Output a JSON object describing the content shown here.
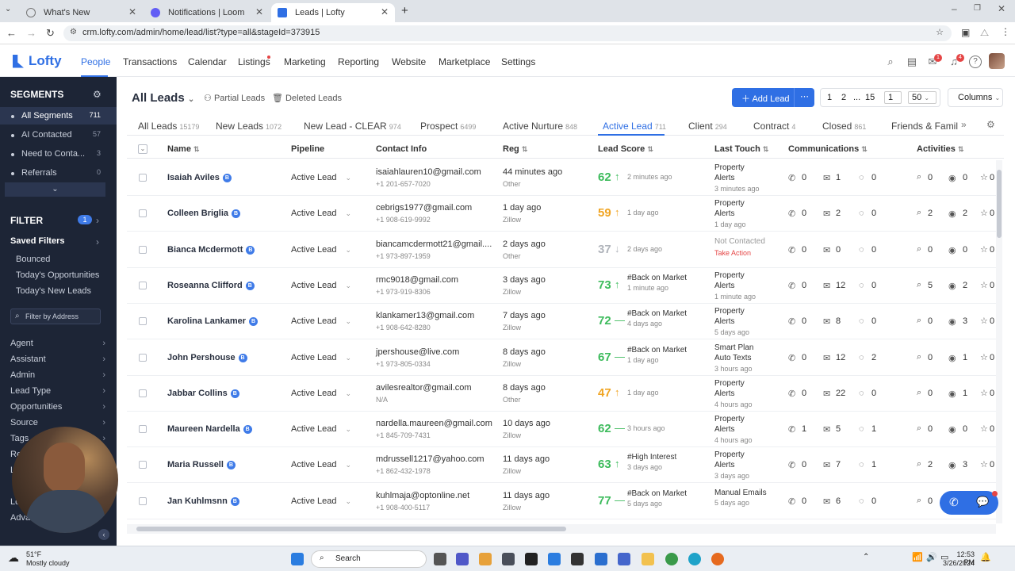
{
  "browser": {
    "tabs": [
      {
        "title": "What's New"
      },
      {
        "title": "Notifications | Loom"
      },
      {
        "title": "Leads | Lofty"
      }
    ],
    "url": "crm.lofty.com/admin/home/lead/list?type=all&stageId=373915"
  },
  "app": {
    "logo": "Lofty",
    "nav": [
      "People",
      "Transactions",
      "Calendar",
      "Listings",
      "Marketing",
      "Reporting",
      "Website",
      "Marketplace",
      "Settings"
    ],
    "badges": {
      "inbox": "1",
      "bell": "4"
    }
  },
  "sidebar": {
    "segments_title": "SEGMENTS",
    "segments": [
      {
        "label": "All Segments",
        "count": "711"
      },
      {
        "label": "AI Contacted",
        "count": "57"
      },
      {
        "label": "Need to Conta...",
        "count": "3"
      },
      {
        "label": "Referrals",
        "count": "0"
      }
    ],
    "filter_title": "FILTER",
    "filter_count": "1",
    "saved_filters": "Saved Filters",
    "saved": [
      "Bounced",
      "Today's Opportunities",
      "Today's New Leads"
    ],
    "filter_address": "Filter by Address",
    "filters": [
      "Agent",
      "Assistant",
      "Admin",
      "Lead Type",
      "Opportunities",
      "Source",
      "Tags",
      "Re",
      "L",
      "Lo",
      "Adva"
    ]
  },
  "toolbar": {
    "title": "All Leads",
    "partial": "Partial Leads",
    "deleted": "Deleted Leads",
    "add_lead": "Add Lead",
    "pages": [
      "1",
      "2",
      "...",
      "15"
    ],
    "page_input": "1",
    "per_page": "50",
    "columns": "Columns"
  },
  "stages": [
    {
      "label": "All Leads",
      "count": "15179"
    },
    {
      "label": "New Leads",
      "count": "1072"
    },
    {
      "label": "New Lead - CLEAR",
      "count": "974"
    },
    {
      "label": "Prospect",
      "count": "6499"
    },
    {
      "label": "Active Nurture",
      "count": "848"
    },
    {
      "label": "Active Lead",
      "count": "711"
    },
    {
      "label": "Client",
      "count": "294"
    },
    {
      "label": "Contract",
      "count": "4"
    },
    {
      "label": "Closed",
      "count": "861"
    },
    {
      "label": "Friends & Famil",
      "count": ""
    }
  ],
  "columns": [
    "Name",
    "Pipeline",
    "Contact Info",
    "Reg",
    "Lead Score",
    "Last Touch",
    "Communications",
    "Activities"
  ],
  "rows": [
    {
      "name": "Isaiah Aviles",
      "pipeline": "Active Lead",
      "email": "isaiahlauren10@gmail.com",
      "phone": "+1 201-657-7020",
      "reg": "44 minutes ago",
      "source": "Other",
      "score": "62",
      "score_color": "#3dbb5c",
      "trend": "↑",
      "score_note": "2 minutes ago",
      "score_tag": "",
      "touch1": "Property",
      "touch2": "Alerts",
      "touch3": "3 minutes ago",
      "calls": "0",
      "emails": "1",
      "texts": "0",
      "views": "0",
      "visits": "0"
    },
    {
      "name": "Colleen Briglia",
      "pipeline": "Active Lead",
      "email": "cebrigs1977@gmail.com",
      "phone": "+1 908-619-9992",
      "reg": "1 day ago",
      "source": "Zillow",
      "score": "59",
      "score_color": "#f0a422",
      "trend": "↑",
      "score_note": "1 day ago",
      "score_tag": "",
      "touch1": "Property",
      "touch2": "Alerts",
      "touch3": "1 day ago",
      "calls": "0",
      "emails": "2",
      "texts": "0",
      "views": "2",
      "visits": "2"
    },
    {
      "name": "Bianca Mcdermott",
      "pipeline": "Active Lead",
      "email": "biancamcdermott21@gmail....",
      "phone": "+1 973-897-1959",
      "reg": "2 days ago",
      "source": "Other",
      "score": "37",
      "score_color": "#b0b4bb",
      "trend": "↓",
      "score_note": "2 days ago",
      "score_tag": "",
      "touch1": "Not Contacted",
      "touch2": "",
      "touch3": "Take Action",
      "calls": "0",
      "emails": "0",
      "texts": "0",
      "views": "0",
      "visits": "0"
    },
    {
      "name": "Roseanna Clifford",
      "pipeline": "Active Lead",
      "email": "rmc9018@gmail.com",
      "phone": "+1 973-919-8306",
      "reg": "3 days ago",
      "source": "Zillow",
      "score": "73",
      "score_color": "#3dbb5c",
      "trend": "↑",
      "score_note": "1 minute ago",
      "score_tag": "#Back on Market",
      "touch1": "Property",
      "touch2": "Alerts",
      "touch3": "1 minute ago",
      "calls": "0",
      "emails": "12",
      "texts": "0",
      "views": "5",
      "visits": "2"
    },
    {
      "name": "Karolina Lankamer",
      "pipeline": "Active Lead",
      "email": "klankamer13@gmail.com",
      "phone": "+1 908-642-8280",
      "reg": "7 days ago",
      "source": "Zillow",
      "score": "72",
      "score_color": "#3dbb5c",
      "trend": "—",
      "score_note": "4 days ago",
      "score_tag": "#Back on Market",
      "touch1": "Property",
      "touch2": "Alerts",
      "touch3": "5 days ago",
      "calls": "0",
      "emails": "8",
      "texts": "0",
      "views": "0",
      "visits": "3"
    },
    {
      "name": "John Pershouse",
      "pipeline": "Active Lead",
      "email": "jpershouse@live.com",
      "phone": "+1 973-805-0334",
      "reg": "8 days ago",
      "source": "Zillow",
      "score": "67",
      "score_color": "#3dbb5c",
      "trend": "—",
      "score_note": "1 day ago",
      "score_tag": "#Back on Market",
      "touch1": "Smart Plan",
      "touch2": "Auto Texts",
      "touch3": "3 hours ago",
      "calls": "0",
      "emails": "12",
      "texts": "2",
      "views": "0",
      "visits": "1"
    },
    {
      "name": "Jabbar Collins",
      "pipeline": "Active Lead",
      "email": "avilesrealtor@gmail.com",
      "phone": "N/A",
      "reg": "8 days ago",
      "source": "Other",
      "score": "47",
      "score_color": "#f0a422",
      "trend": "↑",
      "score_note": "1 day ago",
      "score_tag": "",
      "touch1": "Property",
      "touch2": "Alerts",
      "touch3": "4 hours ago",
      "calls": "0",
      "emails": "22",
      "texts": "0",
      "views": "0",
      "visits": "1"
    },
    {
      "name": "Maureen Nardella",
      "pipeline": "Active Lead",
      "email": "nardella.maureen@gmail.com",
      "phone": "+1 845-709-7431",
      "reg": "10 days ago",
      "source": "Zillow",
      "score": "62",
      "score_color": "#3dbb5c",
      "trend": "—",
      "score_note": "3 hours ago",
      "score_tag": "",
      "touch1": "Property",
      "touch2": "Alerts",
      "touch3": "4 hours ago",
      "calls": "1",
      "emails": "5",
      "texts": "1",
      "views": "0",
      "visits": "0"
    },
    {
      "name": "Maria Russell",
      "pipeline": "Active Lead",
      "email": "mdrussell1217@yahoo.com",
      "phone": "+1 862-432-1978",
      "reg": "11 days ago",
      "source": "Zillow",
      "score": "63",
      "score_color": "#3dbb5c",
      "trend": "↑",
      "score_note": "3 days ago",
      "score_tag": "#High Interest",
      "touch1": "Property",
      "touch2": "Alerts",
      "touch3": "3 days ago",
      "calls": "0",
      "emails": "7",
      "texts": "1",
      "views": "2",
      "visits": "3"
    },
    {
      "name": "Jan Kuhlmsnn",
      "pipeline": "Active Lead",
      "email": "kuhlmaja@optonline.net",
      "phone": "+1 908-400-5117",
      "reg": "11 days ago",
      "source": "Zillow",
      "score": "77",
      "score_color": "#3dbb5c",
      "trend": "—",
      "score_note": "5 days ago",
      "score_tag": "#Back on Market",
      "touch1": "Manual Emails",
      "touch2": "",
      "touch3": "5 days ago",
      "calls": "0",
      "emails": "6",
      "texts": "0",
      "views": "0",
      "visits": ""
    }
  ],
  "taskbar": {
    "weather_temp": "51°F",
    "weather_desc": "Mostly cloudy",
    "search": "Search",
    "time": "12:53 PM",
    "date": "3/26/2024"
  },
  "colors": {
    "accent": "#2f6fe4",
    "sidebar": "#1d2536",
    "add_button": "#2f6fe4"
  }
}
